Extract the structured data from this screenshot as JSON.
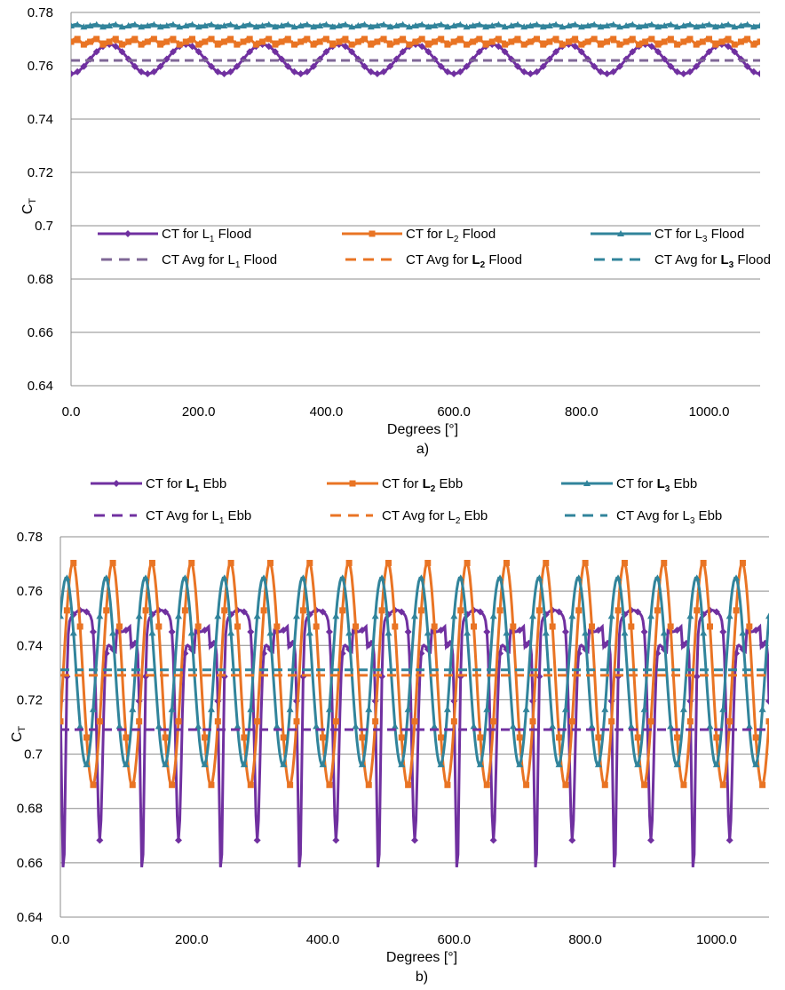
{
  "colors": {
    "purple": "#7030a0",
    "orange": "#e97424",
    "teal": "#31849b",
    "gray_purple": "#7f6796"
  },
  "chart_data": [
    {
      "type": "line",
      "caption": "a)",
      "xlabel": "Degrees [°]",
      "ylabel": "C",
      "ylabel_sub": "T",
      "xlim": [
        0,
        1080
      ],
      "ylim": [
        0.64,
        0.78
      ],
      "xticks": [
        "0.0",
        "200.0",
        "400.0",
        "600.0",
        "800.0",
        "1000.0"
      ],
      "yticks": [
        "0.64",
        "0.66",
        "0.68",
        "0.7",
        "0.72",
        "0.74",
        "0.76",
        "0.78"
      ],
      "legend": [
        {
          "pre": "CT for ",
          "L": "L",
          "sub": "1",
          "bold": false,
          "post": " Flood"
        },
        {
          "pre": "CT for ",
          "L": "L",
          "sub": "2",
          "bold": false,
          "post": " Flood"
        },
        {
          "pre": "CT for ",
          "L": "L",
          "sub": "3",
          "bold": false,
          "post": " Flood"
        },
        {
          "pre": "CT Avg for ",
          "L": "L",
          "sub": "1",
          "bold": false,
          "post": " Flood"
        },
        {
          "pre": "CT Avg for ",
          "L": "L",
          "sub": "2",
          "bold": true,
          "post": " Flood"
        },
        {
          "pre": "CT Avg for ",
          "L": "L",
          "sub": "3",
          "bold": true,
          "post": " Flood"
        }
      ],
      "series": [
        {
          "color": "purple",
          "marker": "diamond",
          "style": "solid",
          "mean": 0.7625,
          "amp": 0.0055,
          "period": 120,
          "phase": 30,
          "x": [
            0,
            1080
          ]
        },
        {
          "color": "orange",
          "marker": "square",
          "style": "solid",
          "mean": 0.769,
          "amp": 0.0012,
          "period": 30,
          "phase": 0,
          "x": [
            0,
            1080
          ]
        },
        {
          "color": "teal",
          "marker": "triangle",
          "style": "solid",
          "mean": 0.775,
          "amp": 0.0005,
          "period": 30,
          "phase": 0,
          "x": [
            0,
            1080
          ]
        },
        {
          "color": "gray_purple",
          "marker": "none",
          "style": "dashed",
          "mean": 0.762,
          "amp": 0,
          "period": 120,
          "phase": 0,
          "x": [
            0,
            1080
          ]
        },
        {
          "color": "orange",
          "marker": "none",
          "style": "dashed",
          "mean": 0.769,
          "amp": 0,
          "period": 120,
          "phase": 0,
          "x": [
            0,
            1080
          ]
        },
        {
          "color": "teal",
          "marker": "none",
          "style": "dashed",
          "mean": 0.775,
          "amp": 0,
          "period": 120,
          "phase": 0,
          "x": [
            0,
            1080
          ]
        }
      ]
    },
    {
      "type": "line",
      "caption": "b)",
      "xlabel": "Degrees [°]",
      "ylabel": "C",
      "ylabel_sub": "T",
      "xlim": [
        0,
        1080
      ],
      "ylim": [
        0.64,
        0.78
      ],
      "xticks": [
        "0.0",
        "200.0",
        "400.0",
        "600.0",
        "800.0",
        "1000.0"
      ],
      "yticks": [
        "0.64",
        "0.66",
        "0.68",
        "0.7",
        "0.72",
        "0.74",
        "0.76",
        "0.78"
      ],
      "legend": [
        {
          "pre": "CT for ",
          "L": "L",
          "sub": "1",
          "bold": true,
          "post": " Ebb"
        },
        {
          "pre": "CT for ",
          "L": "L",
          "sub": "2",
          "bold": true,
          "post": " Ebb"
        },
        {
          "pre": "CT for ",
          "L": "L",
          "sub": "3",
          "bold": true,
          "post": " Ebb"
        },
        {
          "pre": "CT Avg for ",
          "L": "L",
          "sub": "1",
          "bold": false,
          "post": " Ebb"
        },
        {
          "pre": "CT Avg for ",
          "L": "L",
          "sub": "2",
          "bold": false,
          "post": " Ebb"
        },
        {
          "pre": "CT Avg for ",
          "L": "L",
          "sub": "3",
          "bold": false,
          "post": " Ebb"
        }
      ],
      "series": [
        {
          "color": "purple",
          "marker": "diamond",
          "style": "solid",
          "shape": "ebb1",
          "period": 120,
          "x": [
            0,
            1080
          ]
        },
        {
          "color": "orange",
          "marker": "square",
          "style": "solid",
          "shape": "ebb2",
          "period": 120,
          "x": [
            0,
            1080
          ]
        },
        {
          "color": "teal",
          "marker": "triangle",
          "style": "solid",
          "shape": "ebb3",
          "period": 120,
          "x": [
            0,
            1080
          ]
        },
        {
          "color": "purple",
          "marker": "none",
          "style": "dashed",
          "mean": 0.709,
          "x": [
            0,
            1080
          ]
        },
        {
          "color": "orange",
          "marker": "none",
          "style": "dashed",
          "mean": 0.729,
          "x": [
            0,
            1080
          ]
        },
        {
          "color": "teal",
          "marker": "none",
          "style": "dashed",
          "mean": 0.731,
          "x": [
            0,
            1080
          ]
        }
      ]
    }
  ]
}
